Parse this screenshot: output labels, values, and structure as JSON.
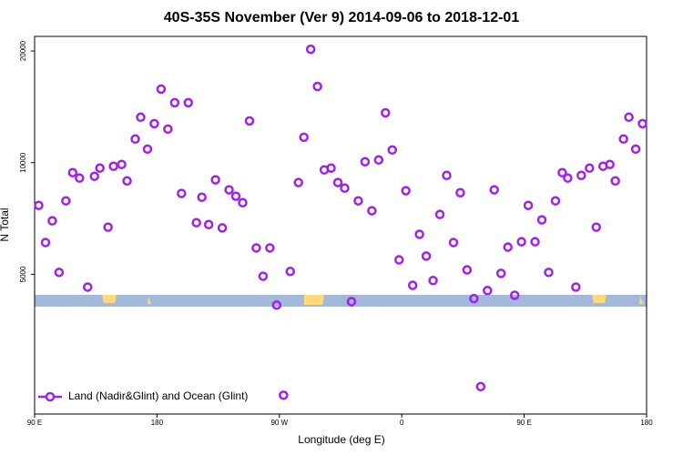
{
  "chart_data": {
    "type": "scatter",
    "title": "40S-35S November (Ver 9)   2014-09-06 to 2018-12-01",
    "x_label": "Longitude (deg E)",
    "y_label": "N Total",
    "xlim": [
      90,
      540
    ],
    "xticks": [
      {
        "value": 90,
        "label": "90 E"
      },
      180,
      {
        "value": 270,
        "label": "90 W"
      },
      {
        "value": 360,
        "label": "0"
      },
      {
        "value": 450,
        "label": "90 E"
      },
      {
        "value": 540,
        "label": "180"
      }
    ],
    "ylim": [
      2100,
      21900
    ],
    "yticks": [
      5000,
      10000,
      20000
    ],
    "log_y": true,
    "legend": "bottom-left",
    "series": [
      {
        "name": "Land (Nadir&Glint) and Ocean (Glint)",
        "color": "#a020f0",
        "x": [
          93,
          98,
          103,
          108,
          113,
          118,
          123,
          129,
          134,
          138,
          144,
          148,
          154,
          158,
          164,
          168,
          173,
          178,
          183,
          188,
          193,
          198,
          203,
          209,
          213,
          218,
          223,
          228,
          233,
          238,
          243,
          248,
          253,
          258,
          263,
          268,
          273,
          278,
          284,
          288,
          293,
          298,
          303,
          308,
          313,
          318,
          323,
          328,
          333,
          338,
          343,
          348,
          353,
          358,
          363,
          368,
          373,
          378,
          383,
          388,
          393,
          398,
          403,
          408,
          413,
          418,
          423,
          428,
          433,
          438,
          443,
          448,
          453,
          458,
          463,
          468,
          473,
          478,
          482,
          488,
          492,
          498,
          503,
          508,
          513,
          517,
          523,
          527,
          532,
          537
        ],
        "values": [
          7670,
          6090,
          6970,
          5060,
          7890,
          9400,
          9090,
          4620,
          9190,
          9670,
          6700,
          9780,
          9890,
          8930,
          11580,
          13260,
          10880,
          12740,
          15790,
          12320,
          14510,
          8260,
          14510,
          6890,
          8070,
          6810,
          8990,
          6670,
          8450,
          8120,
          7800,
          12960,
          5890,
          4940,
          5890,
          4130,
          2360,
          5090,
          8840,
          11710,
          20220,
          16050,
          9560,
          9670,
          8840,
          8540,
          4220,
          7890,
          10060,
          7420,
          10170,
          13630,
          10820,
          5470,
          8400,
          4670,
          6410,
          5600,
          4810,
          7250,
          9240,
          6090,
          8300,
          5140,
          4300,
          2490,
          4520,
          8450,
          5030,
          5920,
          4390,
          6120,
          7670,
          6120,
          7010,
          5060,
          7890,
          9400,
          9090,
          4620,
          9240,
          9670,
          6700,
          9780,
          9890,
          8930,
          11580,
          13260,
          10880,
          12740
        ]
      }
    ]
  }
}
